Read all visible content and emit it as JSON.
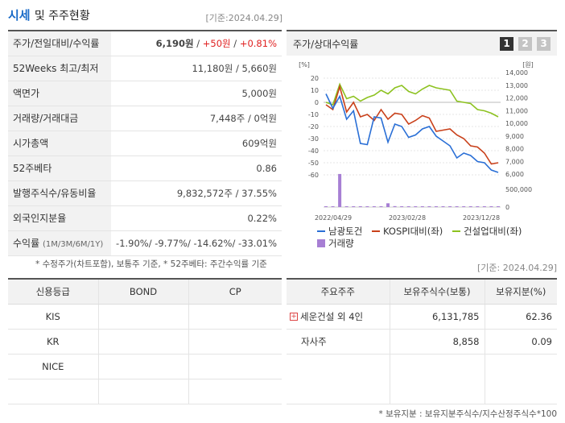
{
  "header": {
    "title_main": "시세",
    "title_rest": "및 주주현황",
    "base_date": "[기준:2024.04.29]"
  },
  "quote": {
    "rows": [
      {
        "label": "주가/전일대비/수익률",
        "price": "6,190원",
        "sep1": " / ",
        "change": "+50원",
        "sep2": " / ",
        "rate": "+0.81%"
      },
      {
        "label": "52Weeks 최고/최저",
        "value": "11,180원 / 5,660원"
      },
      {
        "label": "액면가",
        "value": "5,000원"
      },
      {
        "label": "거래량/거래대금",
        "value": "7,448주 / 0억원"
      },
      {
        "label": "시가총액",
        "value": "609억원"
      },
      {
        "label": "52주베타",
        "value": "0.86"
      },
      {
        "label": "발행주식수/유동비율",
        "value": "9,832,572주 / 37.55%"
      },
      {
        "label": "외국인지분율",
        "value": "0.22%"
      }
    ],
    "return_label": "수익률",
    "return_sub": "(1M/3M/6M/1Y)",
    "returns": "-1.90%/ -9.77%/ -14.62%/ -33.01%"
  },
  "note_price": "* 수정주가(차트포함), 보통주 기준, * 52주베타: 주간수익률 기준",
  "chart_panel": {
    "title": "주가/상대수익률",
    "pages": [
      "1",
      "2",
      "3"
    ],
    "active_page": "1"
  },
  "chart_data": {
    "type": "line",
    "left_axis_unit": "[%]",
    "right_axis_unit": "[원]",
    "left_ticks": [
      "20",
      "10",
      "0",
      "-10",
      "-20",
      "-30",
      "-40",
      "-50",
      "-60"
    ],
    "right_ticks": [
      "14,000",
      "13,000",
      "12,000",
      "11,000",
      "10,000",
      "9,000",
      "8,000",
      "7,000",
      "6,000"
    ],
    "volume_ticks": [
      "500,000",
      "0"
    ],
    "x_ticks": [
      "2022/04/29",
      "2023/02/28",
      "2023/12/28"
    ],
    "ylim_left": [
      -60,
      20
    ],
    "series": [
      {
        "name": "남광토건",
        "color": "#2a6fd6",
        "values": [
          7,
          -5,
          5,
          -14,
          -7,
          -34,
          -35,
          -12,
          -13,
          -33,
          -18,
          -20,
          -29,
          -27,
          -22,
          -20,
          -28,
          -32,
          -36,
          -46,
          -42,
          -44,
          -49,
          -50,
          -56,
          -58
        ]
      },
      {
        "name": "KOSPI대비(좌)",
        "color": "#c9401a",
        "values": [
          -2,
          -6,
          13,
          -8,
          0,
          -12,
          -10,
          -15,
          -6,
          -14,
          -9,
          -10,
          -18,
          -15,
          -11,
          -13,
          -24,
          -23,
          -22,
          -27,
          -30,
          -36,
          -37,
          -42,
          -51,
          -50
        ]
      },
      {
        "name": "건설업대비(좌)",
        "color": "#8dc220",
        "values": [
          0,
          -2,
          15,
          3,
          5,
          1,
          4,
          6,
          10,
          7,
          12,
          14,
          9,
          7,
          11,
          14,
          12,
          11,
          10,
          1,
          0,
          -1,
          -6,
          -7,
          -9,
          -12
        ]
      },
      {
        "name": "거래량",
        "color": "#a77fd4",
        "values": [
          10,
          10,
          700000,
          8000,
          6000,
          5000,
          12000,
          6000,
          15000,
          80000,
          20000,
          10000,
          9000,
          8000,
          6000,
          5000,
          4000,
          4000,
          3000,
          3000,
          2000,
          2000,
          2000,
          2000,
          2000,
          2000
        ]
      }
    ]
  },
  "credit": {
    "headers": [
      "신용등급",
      "BOND",
      "CP"
    ],
    "rows": [
      [
        "KIS",
        "",
        ""
      ],
      [
        "KR",
        "",
        ""
      ],
      [
        "NICE",
        "",
        ""
      ],
      [
        "",
        "",
        ""
      ]
    ]
  },
  "holders": {
    "base_date": "[기준: 2024.04.29]",
    "headers": [
      "주요주주",
      "보유주식수(보통)",
      "보유지분(%)"
    ],
    "rows": [
      {
        "name": "세운건설 외 4인",
        "shares": "6,131,785",
        "pct": "62.36",
        "expand": "+"
      },
      {
        "name": "자사주",
        "shares": "8,858",
        "pct": "0.09"
      },
      {
        "name": "",
        "shares": "",
        "pct": ""
      }
    ]
  },
  "note_holders": "* 보유지분 : 보유지분주식수/지수산정주식수*100"
}
